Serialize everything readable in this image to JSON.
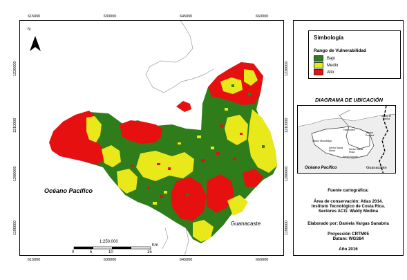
{
  "x_ticks": [
    "615000",
    "630000",
    "645000",
    "660000"
  ],
  "y_ticks": [
    "1220000",
    "1210000",
    "1200000",
    "1190000"
  ],
  "north_label": "N",
  "ocean_label": "Océano Pacífico",
  "region_label": "Guanacaste",
  "scale": {
    "ratio": "1:250.000",
    "labels": [
      "0",
      "5",
      "10",
      "15"
    ],
    "unit": "Km"
  },
  "legend": {
    "title": "Simbología",
    "subtitle": "Rango de Vulnerabilidad",
    "items": [
      {
        "label": "Bajo",
        "color": "#2e7d1a"
      },
      {
        "label": "Medio",
        "color": "#e8e81a"
      },
      {
        "label": "Alto",
        "color": "#e61010"
      }
    ]
  },
  "inset": {
    "title": "DIAGRAMA DE UBICACIÓN",
    "labels": [
      "Sector El Hacha",
      "Sector Pocosol",
      "Sector Murciélago",
      "Horizontes",
      "Sector Santa Elena",
      "Sector Santa Rosa",
      "Sector Mundo",
      "Océano Pacífico",
      "Guanacaste"
    ]
  },
  "credits": {
    "source_title": "Fuente cartográfica:",
    "source_lines": [
      "Área de conservación: Atlas 2014.",
      "Instituto Tecnológico de Costa Rica.",
      "Sectores ACG: Waldy Medina"
    ],
    "author": "Elaborado por: Daniela Vargas Sanabria",
    "projection": "Proyección CRTM05",
    "datum": "Datum: WGS84",
    "year": "Año 2016"
  },
  "colors": {
    "bajo": "#2e7d1a",
    "medio": "#e8e81a",
    "alto": "#e61010",
    "line": "#9a9a9a"
  }
}
